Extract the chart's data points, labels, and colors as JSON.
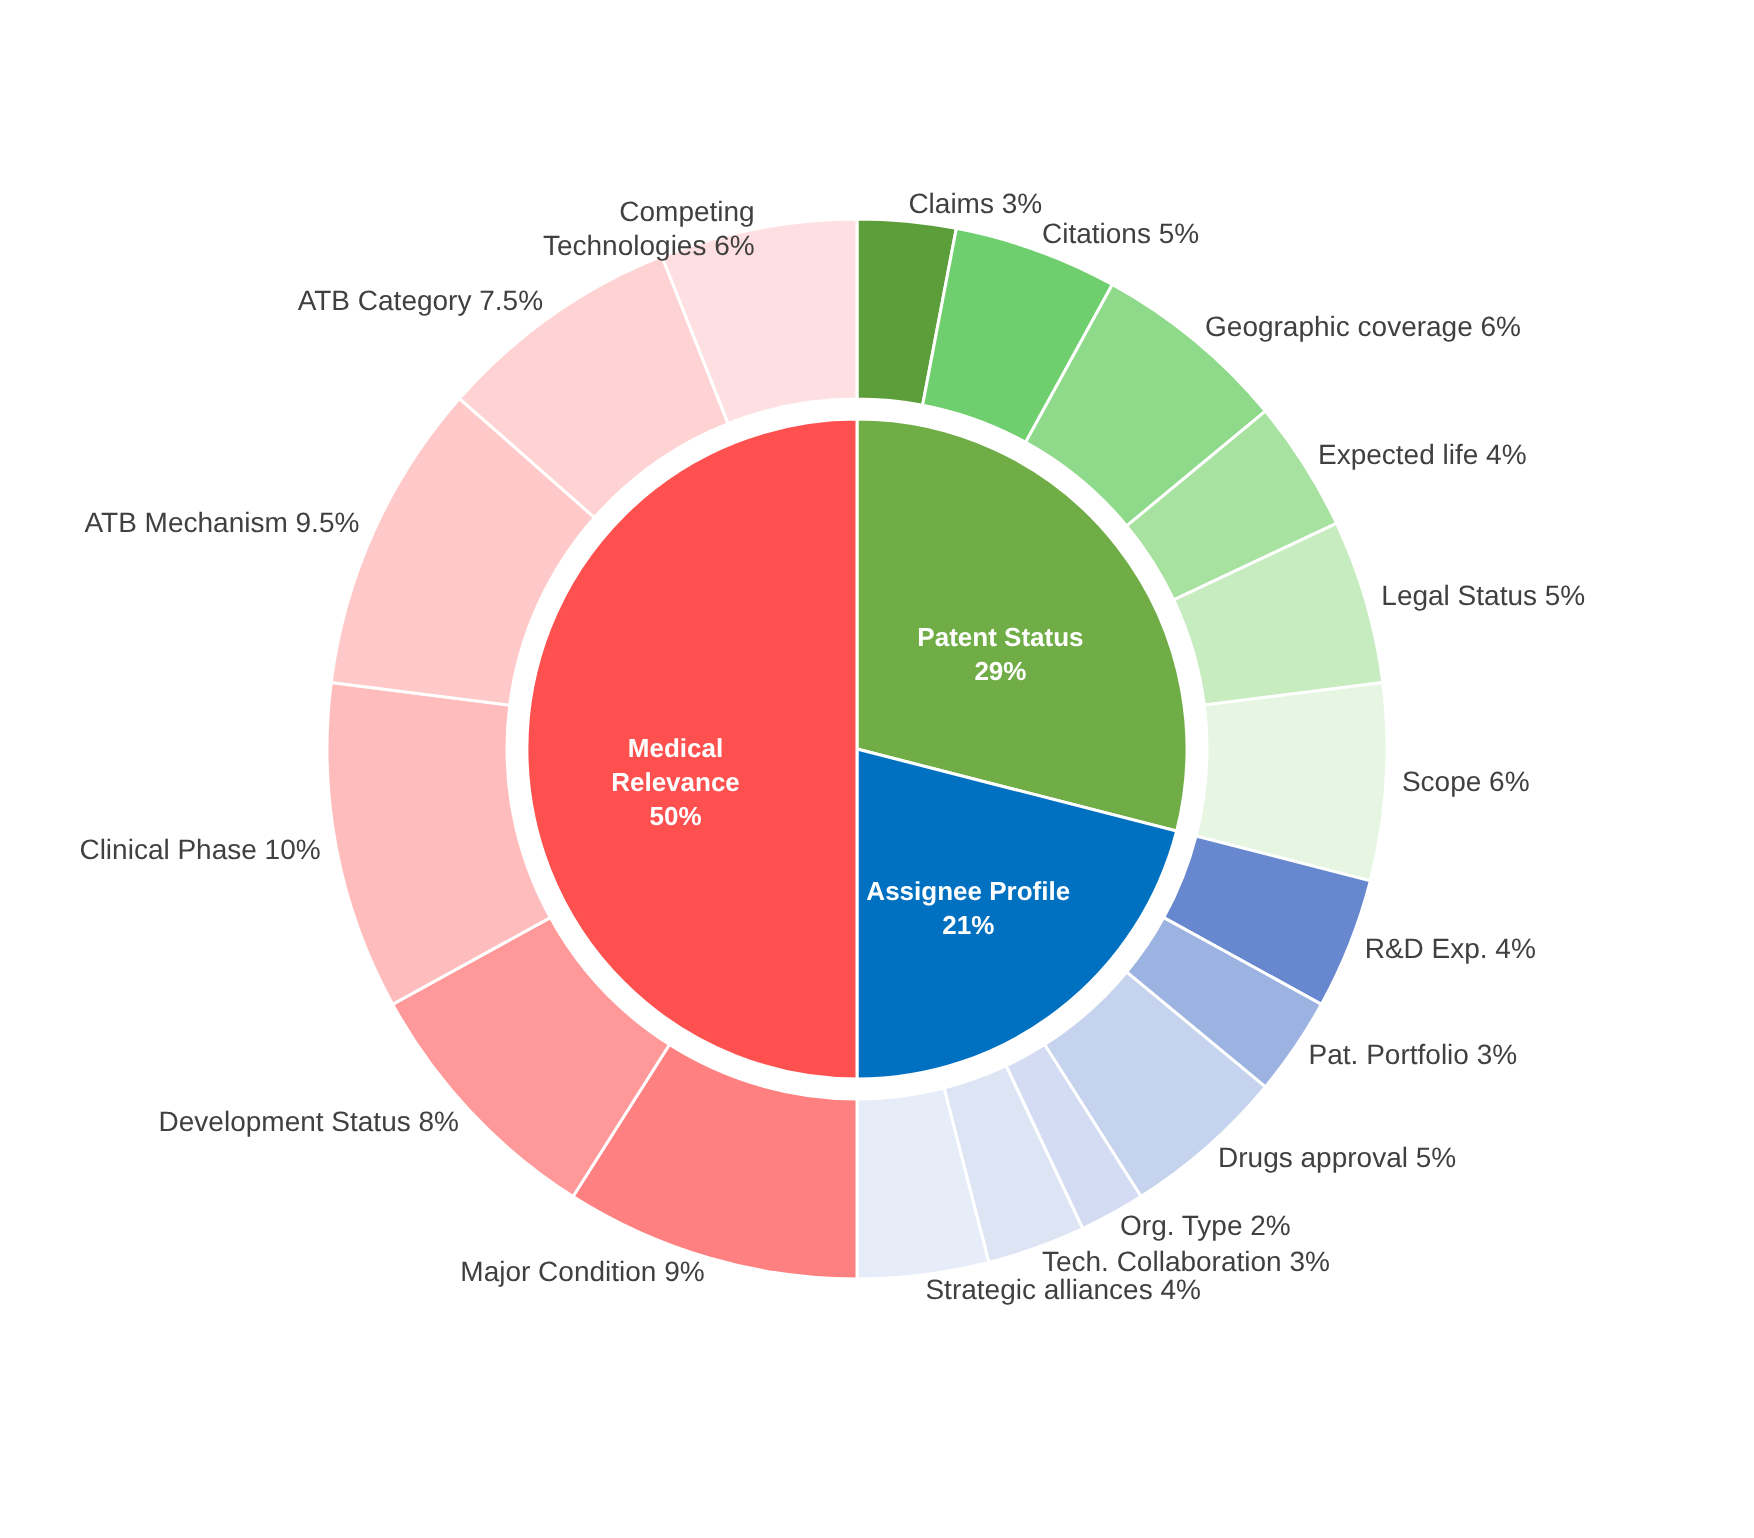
{
  "chart_data": [
    {
      "type": "donut",
      "categories": [
        "Claims",
        "Citations",
        "Geographic coverage",
        "Expected life",
        "Legal Status",
        "Scope",
        "R&D Exp.",
        "Pat. Portfolio",
        "Drugs approval",
        "Org. Type",
        "Tech. Collaboration",
        "Strategic alliances",
        "Major Condition",
        "Development Status",
        "Clinical Phase",
        "ATB Mechanism",
        "ATB Category",
        "Competing Technologies"
      ],
      "values": [
        3,
        5,
        6,
        4,
        5,
        6,
        4,
        3,
        5,
        2,
        3,
        4,
        9,
        8,
        10,
        9.5,
        7.5,
        6
      ],
      "colors": [
        "#5c9e3a",
        "#6fcf6f",
        "#8ed98a",
        "#a8e2a0",
        "#c6ecc0",
        "#e6f6e3",
        "#6787cf",
        "#9cb3e2",
        "#c5d3ee",
        "#d3dcf2",
        "#dde5f5",
        "#e6ecf8",
        "#ff8080",
        "#ff9999",
        "#ffbcbc",
        "#ffc9c9",
        "#ffd3d3",
        "#ffe0e2"
      ],
      "value_labels": [
        "3%",
        "5%",
        "6%",
        "4%",
        "5%",
        "6%",
        "4%",
        "3%",
        "5%",
        "2%",
        "3%",
        "4%",
        "9%",
        "8%",
        "10%",
        "9.5%",
        "7.5%",
        "6%"
      ]
    },
    {
      "type": "pie",
      "categories": [
        "Patent Status",
        "Assignee Profile",
        "Medical Relevance"
      ],
      "values": [
        29,
        21,
        50
      ],
      "colors": [
        "#70ad47",
        "#0070c0",
        "#ff5050"
      ],
      "value_labels": [
        "29%",
        "21%",
        "50%"
      ]
    }
  ]
}
